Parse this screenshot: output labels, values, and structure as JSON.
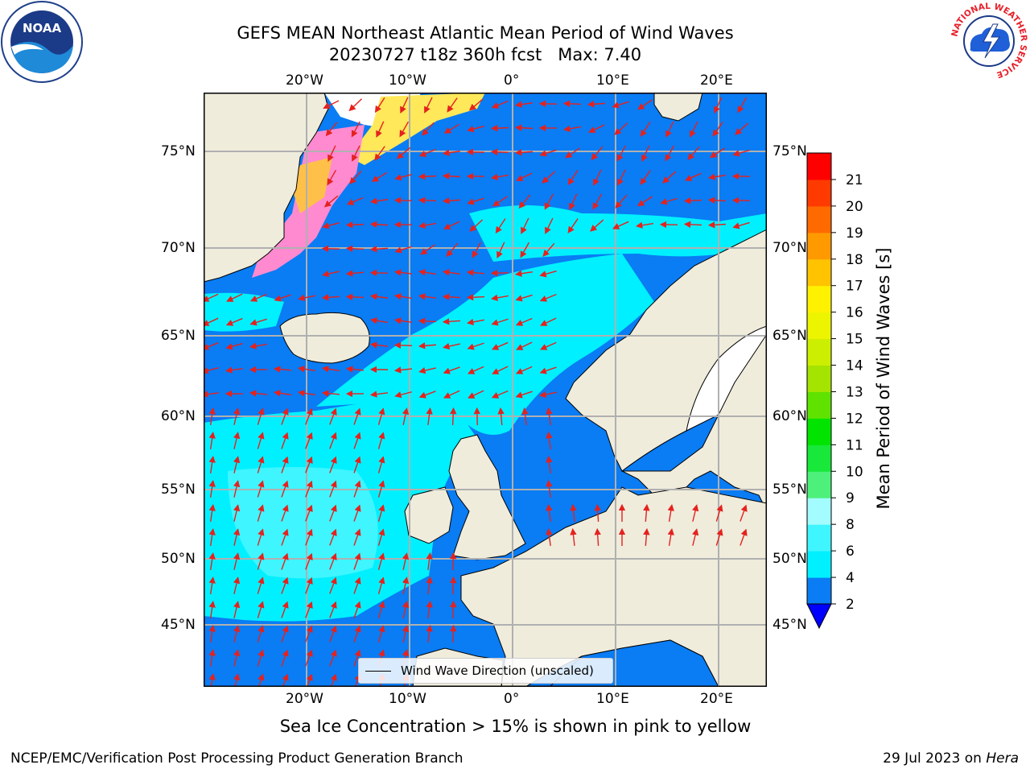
{
  "title": "GEFS MEAN Northeast Atlantic Mean Period of Wind Waves",
  "subtitle": "20230727 t18z 360h fcst   Max: 7.40",
  "logos": {
    "noaa_text": "NOAA",
    "nws_text": "NATIONAL WEATHER SERVICE"
  },
  "map": {
    "lon_ticks": [
      "20°W",
      "10°W",
      "0°",
      "10°E",
      "20°E"
    ],
    "lat_ticks": [
      "75°N",
      "70°N",
      "65°N",
      "60°N",
      "55°N",
      "50°N",
      "45°N"
    ],
    "land_color": "#efecdc",
    "ice_free_white": "#ffffff"
  },
  "colorbar": {
    "label": "Mean Period of Wind Waves [s]",
    "ticks": [
      "2",
      "4",
      "6",
      "8",
      "9",
      "10",
      "11",
      "12",
      "13",
      "14",
      "15",
      "16",
      "17",
      "18",
      "19",
      "20",
      "21"
    ],
    "colors": [
      "#0a7cf4",
      "#00f0ff",
      "#3ff5ff",
      "#a3fcff",
      "#4df07a",
      "#17e83a",
      "#00e400",
      "#5fe200",
      "#a5e300",
      "#ccee00",
      "#ecf400",
      "#fff200",
      "#ffc300",
      "#ff9900",
      "#ff6a00",
      "#ff3a00",
      "#ff0000"
    ],
    "under_color": "#0000ff"
  },
  "legend": {
    "label": "Wind Wave Direction (unscaled)"
  },
  "caption": "Sea Ice Concentration > 15% is shown in pink to yellow",
  "footer": {
    "left": "NCEP/EMC/Verification Post Processing Product Generation Branch",
    "right_date": "29 Jul 2023 on ",
    "right_host": "Hera"
  }
}
